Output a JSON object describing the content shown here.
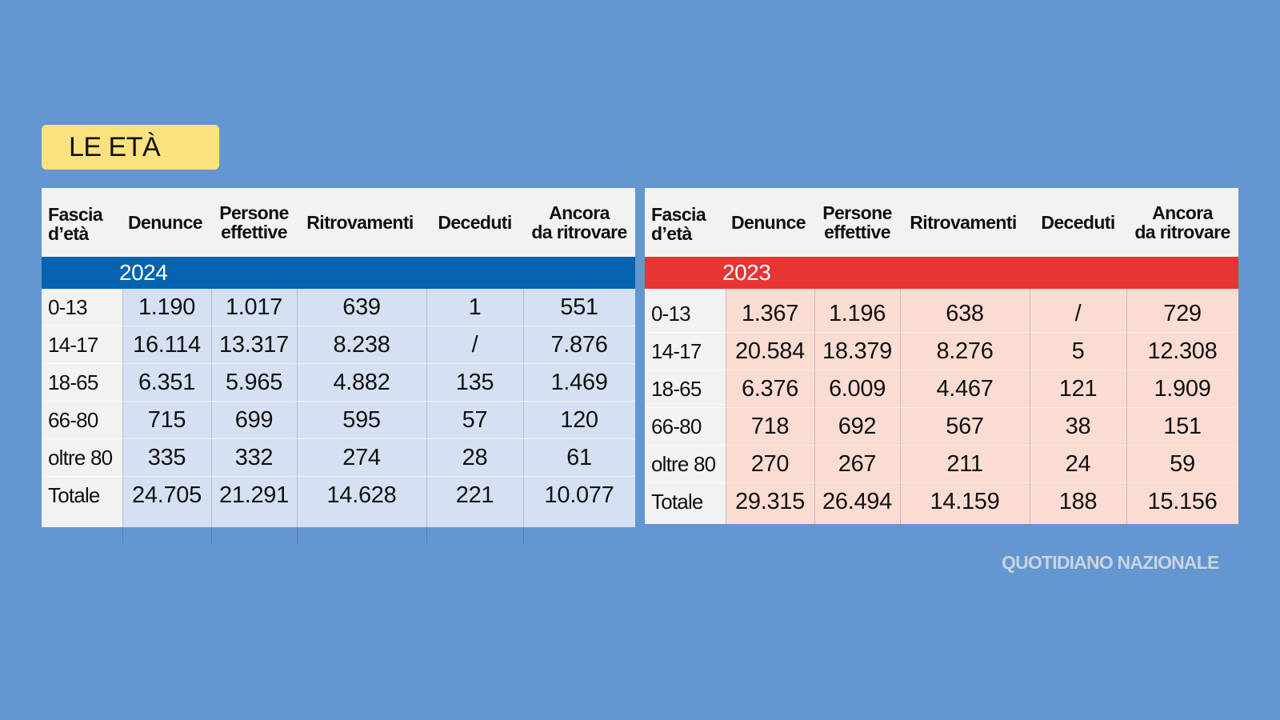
{
  "title": "LE ETÀ",
  "credit": "QUOTIDIANO NAZIONALE",
  "colors": {
    "background": "#6497cf",
    "title_bg": "#fbe27e",
    "year_2024": "#0563b0",
    "year_2023": "#e63532",
    "body_2024": "#d5e1f2",
    "body_2023": "#fbdcd2"
  },
  "chart_data": [
    {
      "type": "table",
      "year": "2024",
      "headers": [
        [
          "Fascia",
          "d’età"
        ],
        [
          "Denunce"
        ],
        [
          "Persone",
          "effettive"
        ],
        [
          "Ritrovamenti"
        ],
        [
          "Deceduti"
        ],
        [
          "Ancora",
          "da ritrovare"
        ]
      ],
      "rows": [
        [
          "0-13",
          "1.190",
          "1.017",
          "639",
          "1",
          "551"
        ],
        [
          "14-17",
          "16.114",
          "13.317",
          "8.238",
          "/",
          "7.876"
        ],
        [
          "18-65",
          "6.351",
          "5.965",
          "4.882",
          "135",
          "1.469"
        ],
        [
          "66-80",
          "715",
          "699",
          "595",
          "57",
          "120"
        ],
        [
          "oltre 80",
          "335",
          "332",
          "274",
          "28",
          "61"
        ],
        [
          "Totale",
          "24.705",
          "21.291",
          "14.628",
          "221",
          "10.077"
        ]
      ]
    },
    {
      "type": "table",
      "year": "2023",
      "headers": [
        [
          "Fascia",
          "d’età"
        ],
        [
          "Denunce"
        ],
        [
          "Persone",
          "effettive"
        ],
        [
          "Ritrovamenti"
        ],
        [
          "Deceduti"
        ],
        [
          "Ancora",
          "da ritrovare"
        ]
      ],
      "rows": [
        [
          "0-13",
          "1.367",
          "1.196",
          "638",
          "/",
          "729"
        ],
        [
          "14-17",
          "20.584",
          "18.379",
          "8.276",
          "5",
          "12.308"
        ],
        [
          "18-65",
          "6.376",
          "6.009",
          "4.467",
          "121",
          "1.909"
        ],
        [
          "66-80",
          "718",
          "692",
          "567",
          "38",
          "151"
        ],
        [
          "oltre 80",
          "270",
          "267",
          "211",
          "24",
          "59"
        ],
        [
          "Totale",
          "29.315",
          "26.494",
          "14.159",
          "188",
          "15.156"
        ]
      ]
    }
  ]
}
